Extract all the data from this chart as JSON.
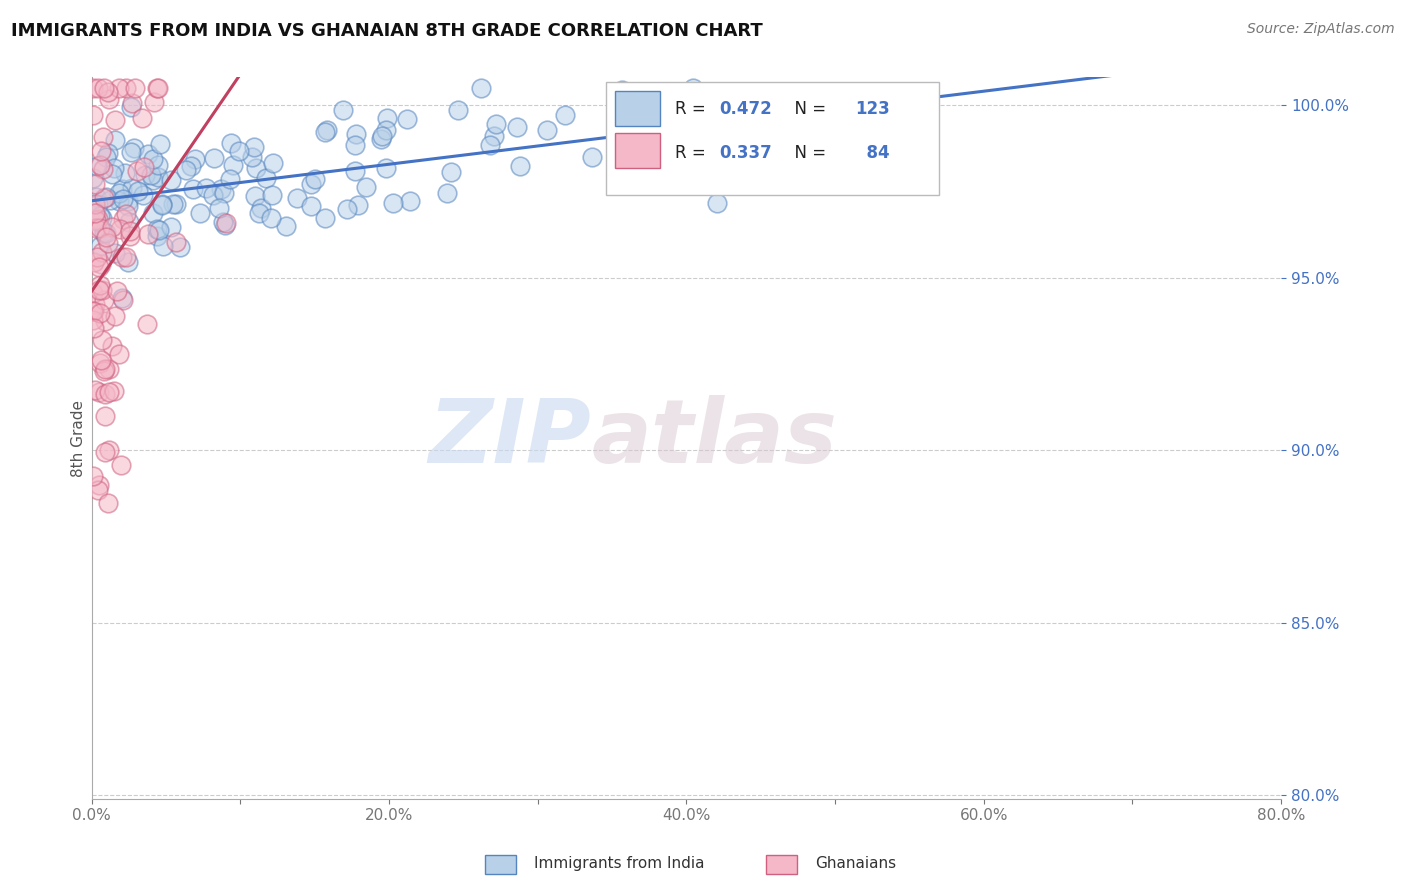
{
  "title": "IMMIGRANTS FROM INDIA VS GHANAIAN 8TH GRADE CORRELATION CHART",
  "source": "Source: ZipAtlas.com",
  "ylabel": "8th Grade",
  "xlim": [
    0.0,
    0.8
  ],
  "ylim": [
    0.799,
    1.008
  ],
  "xtick_labels": [
    "0.0%",
    "",
    "20.0%",
    "",
    "40.0%",
    "",
    "60.0%",
    "",
    "80.0%"
  ],
  "xtick_vals": [
    0.0,
    0.1,
    0.2,
    0.3,
    0.4,
    0.5,
    0.6,
    0.7,
    0.8
  ],
  "ytick_labels": [
    "100.0%",
    "95.0%",
    "90.0%",
    "85.0%",
    "80.0%"
  ],
  "ytick_vals": [
    1.0,
    0.95,
    0.9,
    0.85,
    0.8
  ],
  "blue_fill_color": "#b8d0e8",
  "blue_edge_color": "#5585c0",
  "pink_fill_color": "#f5b8c8",
  "pink_edge_color": "#d06080",
  "blue_line_color": "#4472c4",
  "pink_line_color": "#c04060",
  "tick_label_color": "#4472c4",
  "legend_blue_label": "Immigrants from India",
  "legend_pink_label": "Ghanaians",
  "R_blue": 0.472,
  "N_blue": 123,
  "R_pink": 0.337,
  "N_pink": 84,
  "watermark_zip": "ZIP",
  "watermark_atlas": "atlas",
  "background_color": "#ffffff",
  "grid_color": "#cccccc",
  "title_fontsize": 13,
  "source_fontsize": 10,
  "marker_size": 180,
  "marker_alpha": 0.55
}
